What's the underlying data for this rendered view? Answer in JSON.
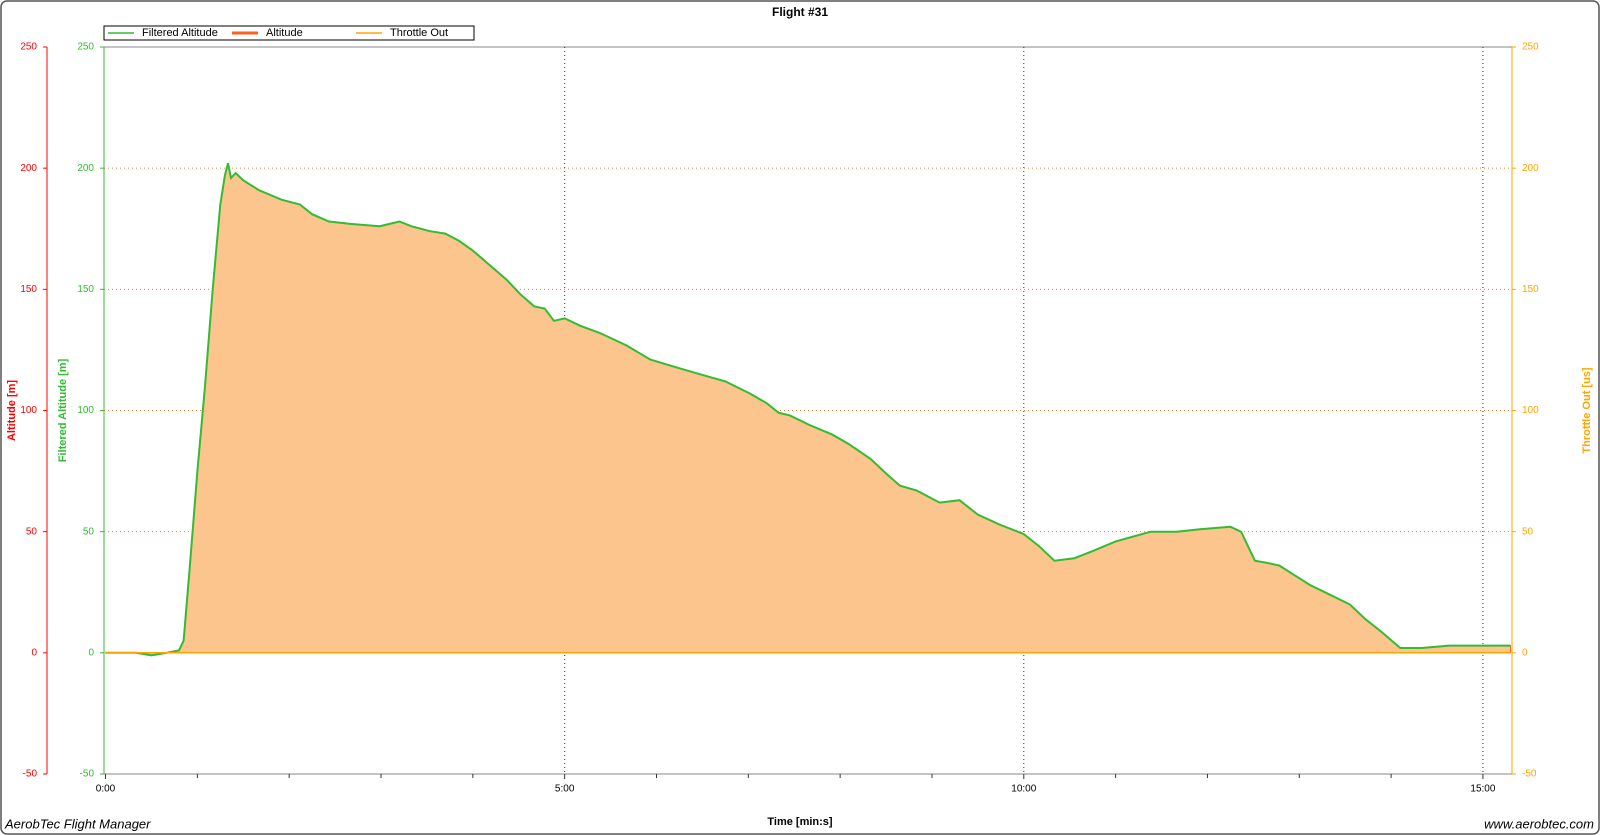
{
  "chart_data": {
    "type": "line",
    "title": "Flight #31",
    "xlabel": "Time [min:s]",
    "footer_left": "AerobTec Flight Manager",
    "footer_right": "www.aerobtec.com",
    "legend": "top-left",
    "fill_color": "#fbc58d",
    "xlim": [
      -1,
      919
    ],
    "xticks": [
      {
        "value": 0,
        "label": "0:00"
      },
      {
        "value": 300,
        "label": "5:00"
      },
      {
        "value": 600,
        "label": "10:00"
      },
      {
        "value": 900,
        "label": "15:00"
      }
    ],
    "xminor_ticks": [
      60,
      120,
      180,
      240,
      360,
      420,
      480,
      540,
      660,
      720,
      780,
      840
    ],
    "y_axes": [
      {
        "label": "Altitude [m]",
        "color": "#ff0000",
        "lim": [
          -50,
          250
        ],
        "ticks": [
          -50,
          0,
          50,
          100,
          150,
          200,
          250
        ]
      },
      {
        "label": "Filtered Altitude [m]",
        "color": "#33bb33",
        "lim": [
          -50,
          250
        ],
        "ticks": [
          -50,
          0,
          50,
          100,
          150,
          200,
          250
        ]
      },
      {
        "label": "Throttle Out [us]",
        "color": "#ffa500",
        "lim": [
          -50,
          250
        ],
        "ticks": [
          -50,
          0,
          50,
          100,
          150,
          200,
          250
        ]
      }
    ],
    "x": [
      0,
      20,
      30,
      40,
      48,
      51,
      55,
      60,
      65,
      70,
      75,
      78,
      80,
      82,
      85,
      90,
      100,
      115,
      127,
      135,
      146,
      160,
      179,
      192,
      200,
      212,
      222,
      231,
      240,
      251,
      262,
      271,
      280,
      287,
      293,
      300,
      310,
      323,
      340,
      356,
      372,
      388,
      405,
      421,
      432,
      440,
      447,
      460,
      475,
      486,
      500,
      510,
      519,
      530,
      545,
      558,
      570,
      584,
      600,
      610,
      620,
      633,
      645,
      660,
      683,
      700,
      715,
      735,
      742,
      751,
      760,
      767,
      777,
      787,
      800,
      813,
      823,
      833,
      846,
      860,
      878,
      900,
      918
    ],
    "series": [
      {
        "name": "Filtered Altitude",
        "color": "#33bb33",
        "axis": 1,
        "style": "line",
        "values": [
          0,
          0,
          -1,
          0,
          1,
          5,
          35,
          75,
          110,
          150,
          185,
          197,
          202,
          196,
          198,
          195,
          191,
          187,
          185,
          181,
          178,
          177,
          176,
          178,
          176,
          174,
          173,
          170,
          166,
          160,
          154,
          148,
          143,
          142,
          137,
          138,
          135,
          132,
          127,
          121,
          118,
          115,
          112,
          107,
          103,
          99,
          98,
          94,
          90,
          86,
          80,
          74,
          69,
          67,
          62,
          63,
          57,
          53,
          49,
          44,
          38,
          39,
          42,
          46,
          50,
          50,
          51,
          52,
          50,
          38,
          37,
          36,
          32,
          28,
          24,
          20,
          14,
          9,
          2,
          2,
          3,
          3,
          3
        ]
      },
      {
        "name": "Altitude",
        "color": "#ff6020",
        "axis": 0,
        "style": "area",
        "values": [
          0,
          0,
          -1,
          0,
          1,
          5,
          35,
          75,
          110,
          150,
          185,
          197,
          202,
          196,
          198,
          195,
          191,
          187,
          185,
          181,
          178,
          177,
          176,
          178,
          176,
          174,
          173,
          170,
          166,
          160,
          154,
          148,
          143,
          142,
          137,
          138,
          135,
          132,
          127,
          121,
          118,
          115,
          112,
          107,
          103,
          99,
          98,
          94,
          90,
          86,
          80,
          74,
          69,
          67,
          62,
          63,
          57,
          53,
          49,
          44,
          38,
          39,
          42,
          46,
          50,
          50,
          51,
          52,
          50,
          38,
          37,
          36,
          32,
          28,
          24,
          20,
          14,
          9,
          2,
          2,
          3,
          3,
          3
        ]
      },
      {
        "name": "Throttle Out",
        "color": "#ffa500",
        "axis": 2,
        "style": "line",
        "x": [
          0,
          918
        ],
        "values": [
          0,
          0
        ]
      }
    ]
  }
}
